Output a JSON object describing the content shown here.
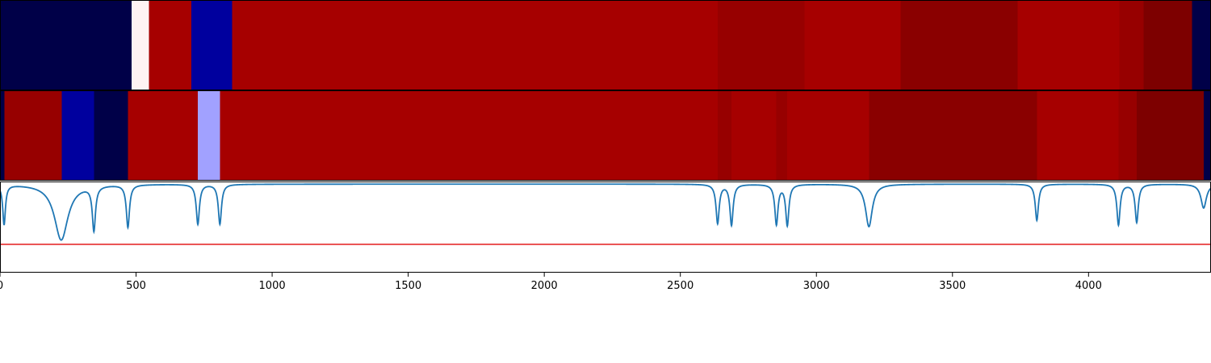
{
  "chart_data": {
    "type": "heatmap",
    "title": "",
    "xlabel": "",
    "ylabel": "",
    "xlim": [
      0,
      4450
    ],
    "x_ticks": [
      0,
      500,
      1000,
      1500,
      2000,
      2500,
      3000,
      3500,
      4000
    ],
    "colormap": "seismic",
    "tracks": [
      {
        "segments": [
          {
            "start": 0,
            "end": 483,
            "color": "#000048"
          },
          {
            "start": 483,
            "end": 548,
            "color": "#fff3f3"
          },
          {
            "start": 548,
            "end": 703,
            "color": "#a60000"
          },
          {
            "start": 703,
            "end": 853,
            "color": "#00009e"
          },
          {
            "start": 853,
            "end": 2637,
            "color": "#a60000"
          },
          {
            "start": 2637,
            "end": 2957,
            "color": "#970000"
          },
          {
            "start": 2957,
            "end": 3310,
            "color": "#a60000"
          },
          {
            "start": 3310,
            "end": 3740,
            "color": "#8a0000"
          },
          {
            "start": 3740,
            "end": 4113,
            "color": "#a60000"
          },
          {
            "start": 4113,
            "end": 4203,
            "color": "#970000"
          },
          {
            "start": 4203,
            "end": 4380,
            "color": "#7d0000"
          },
          {
            "start": 4380,
            "end": 4450,
            "color": "#000048"
          }
        ]
      },
      {
        "segments": [
          {
            "start": 0,
            "end": 17,
            "color": "#000048"
          },
          {
            "start": 17,
            "end": 227,
            "color": "#970000"
          },
          {
            "start": 227,
            "end": 345,
            "color": "#00009e"
          },
          {
            "start": 345,
            "end": 470,
            "color": "#000048"
          },
          {
            "start": 470,
            "end": 727,
            "color": "#a60000"
          },
          {
            "start": 727,
            "end": 808,
            "color": "#a1a1ff"
          },
          {
            "start": 808,
            "end": 2637,
            "color": "#a60000"
          },
          {
            "start": 2637,
            "end": 2688,
            "color": "#970000"
          },
          {
            "start": 2688,
            "end": 2853,
            "color": "#a60000"
          },
          {
            "start": 2853,
            "end": 2893,
            "color": "#970000"
          },
          {
            "start": 2893,
            "end": 3193,
            "color": "#a60000"
          },
          {
            "start": 3193,
            "end": 3810,
            "color": "#8a0000"
          },
          {
            "start": 3810,
            "end": 4110,
            "color": "#a60000"
          },
          {
            "start": 4110,
            "end": 4177,
            "color": "#970000"
          },
          {
            "start": 4177,
            "end": 4423,
            "color": "#7d0000"
          },
          {
            "start": 4423,
            "end": 4450,
            "color": "#000048"
          }
        ]
      }
    ],
    "line_series": {
      "color": "#1f77b4",
      "ylim": [
        -1,
        0.02
      ],
      "baseline": 0,
      "dips": [
        {
          "x": 15,
          "depth": -0.45,
          "width": 6
        },
        {
          "x": 225,
          "depth": -0.63,
          "width": 30
        },
        {
          "x": 345,
          "depth": -0.5,
          "width": 7
        },
        {
          "x": 470,
          "depth": -0.48,
          "width": 7
        },
        {
          "x": 727,
          "depth": -0.45,
          "width": 7
        },
        {
          "x": 808,
          "depth": -0.45,
          "width": 7
        },
        {
          "x": 2637,
          "depth": -0.44,
          "width": 7
        },
        {
          "x": 2688,
          "depth": -0.46,
          "width": 7
        },
        {
          "x": 2853,
          "depth": -0.45,
          "width": 7
        },
        {
          "x": 2893,
          "depth": -0.46,
          "width": 7
        },
        {
          "x": 3193,
          "depth": -0.48,
          "width": 15
        },
        {
          "x": 3810,
          "depth": -0.41,
          "width": 7
        },
        {
          "x": 4110,
          "depth": -0.46,
          "width": 7
        },
        {
          "x": 4177,
          "depth": -0.43,
          "width": 7
        },
        {
          "x": 4423,
          "depth": -0.27,
          "width": 12
        }
      ]
    },
    "threshold": {
      "y": -0.68,
      "color": "#e31a1c"
    },
    "grid": false,
    "legend": "none"
  }
}
